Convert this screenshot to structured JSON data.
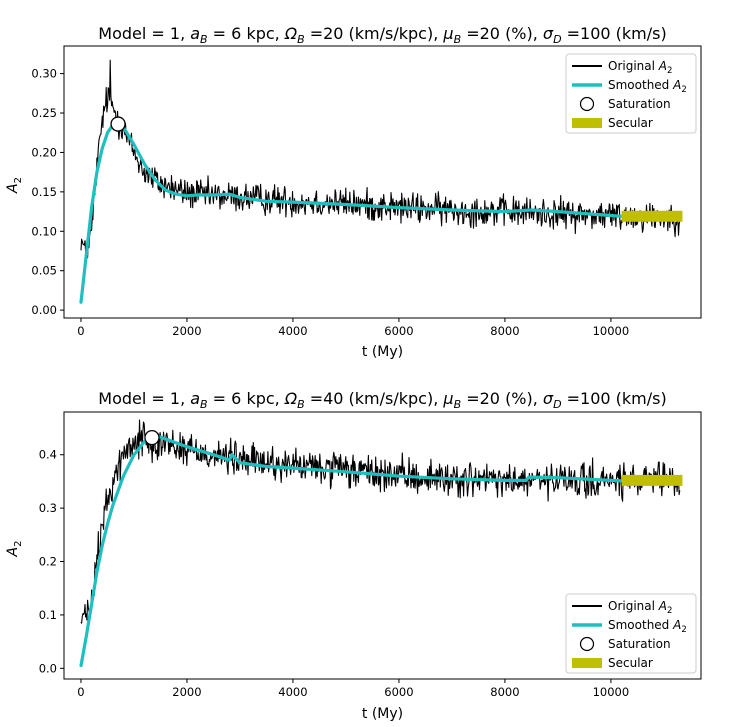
{
  "chart_data": [
    {
      "type": "line",
      "title_parts": [
        "Model = 1,  ",
        "a",
        "B",
        " = 6 kpc,  ",
        "Ω",
        "B",
        " =20 (km/s/kpc),  ",
        "μ",
        "B",
        " =20 (%),  ",
        "σ",
        "D",
        " =100 (km/s)"
      ],
      "xlabel": "t (My)",
      "ylabel_main": "A",
      "ylabel_sub": "2",
      "xlim": [
        -320,
        11700
      ],
      "ylim": [
        -0.01,
        0.335
      ],
      "xticks": [
        0,
        2000,
        4000,
        6000,
        8000,
        10000
      ],
      "xtick_labels": [
        "0",
        "2000",
        "4000",
        "6000",
        "8000",
        "10000"
      ],
      "yticks": [
        0.0,
        0.05,
        0.1,
        0.15,
        0.2,
        0.25,
        0.3
      ],
      "ytick_labels": [
        "0.00",
        "0.05",
        "0.10",
        "0.15",
        "0.20",
        "0.25",
        "0.30"
      ],
      "legend_loc": "top-right",
      "legend": [
        {
          "key": "original",
          "main": "Original ",
          "sub_main": "A",
          "sub": "2"
        },
        {
          "key": "smoothed",
          "main": "Smoothed ",
          "sub_main": "A",
          "sub": "2"
        },
        {
          "key": "saturation",
          "main": "Saturation",
          "sub_main": "",
          "sub": ""
        },
        {
          "key": "secular",
          "main": "Secular",
          "sub_main": "",
          "sub": ""
        }
      ],
      "original_anchors": [
        [
          0,
          0.09
        ],
        [
          100,
          0.07
        ],
        [
          200,
          0.1
        ],
        [
          300,
          0.18
        ],
        [
          400,
          0.24
        ],
        [
          500,
          0.27
        ],
        [
          600,
          0.26
        ],
        [
          700,
          0.24
        ],
        [
          800,
          0.23
        ],
        [
          1000,
          0.2
        ],
        [
          1200,
          0.175
        ],
        [
          1500,
          0.16
        ],
        [
          2000,
          0.148
        ],
        [
          2500,
          0.145
        ],
        [
          3000,
          0.143
        ],
        [
          4000,
          0.138
        ],
        [
          5000,
          0.135
        ],
        [
          6000,
          0.13
        ],
        [
          7000,
          0.127
        ],
        [
          8000,
          0.125
        ],
        [
          9000,
          0.122
        ],
        [
          10000,
          0.12
        ],
        [
          11300,
          0.118
        ]
      ],
      "original_noise": 0.012,
      "original_peak": [
        550,
        0.317
      ],
      "smoothed": [
        [
          0,
          0.01
        ],
        [
          100,
          0.07
        ],
        [
          200,
          0.13
        ],
        [
          300,
          0.175
        ],
        [
          400,
          0.205
        ],
        [
          500,
          0.225
        ],
        [
          600,
          0.235
        ],
        [
          700,
          0.236
        ],
        [
          800,
          0.232
        ],
        [
          1000,
          0.21
        ],
        [
          1200,
          0.185
        ],
        [
          1400,
          0.165
        ],
        [
          1600,
          0.152
        ],
        [
          1800,
          0.147
        ],
        [
          2000,
          0.145
        ],
        [
          2200,
          0.146
        ],
        [
          2500,
          0.146
        ],
        [
          2800,
          0.147
        ],
        [
          3000,
          0.143
        ],
        [
          3500,
          0.138
        ],
        [
          4000,
          0.137
        ],
        [
          5000,
          0.134
        ],
        [
          6000,
          0.13
        ],
        [
          7000,
          0.127
        ],
        [
          8000,
          0.125
        ],
        [
          8500,
          0.127
        ],
        [
          9000,
          0.125
        ],
        [
          10000,
          0.12
        ],
        [
          10200,
          0.119
        ]
      ],
      "saturation": [
        700,
        0.236
      ],
      "secular": {
        "x_start": 10200,
        "x_end": 11350,
        "y": 0.119
      }
    },
    {
      "type": "line",
      "title_parts": [
        "Model = 1,  ",
        "a",
        "B",
        " = 6 kpc,  ",
        "Ω",
        "B",
        " =40 (km/s/kpc),  ",
        "μ",
        "B",
        " =20 (%),  ",
        "σ",
        "D",
        " =100 (km/s)"
      ],
      "xlabel": "t (My)",
      "ylabel_main": "A",
      "ylabel_sub": "2",
      "xlim": [
        -320,
        11700
      ],
      "ylim": [
        -0.02,
        0.48
      ],
      "xticks": [
        0,
        2000,
        4000,
        6000,
        8000,
        10000
      ],
      "xtick_labels": [
        "0",
        "2000",
        "4000",
        "6000",
        "8000",
        "10000"
      ],
      "yticks": [
        0.0,
        0.1,
        0.2,
        0.3,
        0.4
      ],
      "ytick_labels": [
        "0.0",
        "0.1",
        "0.2",
        "0.3",
        "0.4"
      ],
      "legend_loc": "bottom-right",
      "legend": [
        {
          "key": "original",
          "main": "Original ",
          "sub_main": "A",
          "sub": "2"
        },
        {
          "key": "smoothed",
          "main": "Smoothed ",
          "sub_main": "A",
          "sub": "2"
        },
        {
          "key": "saturation",
          "main": "Saturation",
          "sub_main": "",
          "sub": ""
        },
        {
          "key": "secular",
          "main": "Secular",
          "sub_main": "",
          "sub": ""
        }
      ],
      "original_anchors": [
        [
          0,
          0.09
        ],
        [
          100,
          0.1
        ],
        [
          200,
          0.12
        ],
        [
          300,
          0.2
        ],
        [
          400,
          0.27
        ],
        [
          600,
          0.35
        ],
        [
          800,
          0.4
        ],
        [
          1000,
          0.42
        ],
        [
          1200,
          0.43
        ],
        [
          1500,
          0.425
        ],
        [
          2000,
          0.41
        ],
        [
          2500,
          0.4
        ],
        [
          3000,
          0.39
        ],
        [
          4000,
          0.38
        ],
        [
          5000,
          0.37
        ],
        [
          6000,
          0.36
        ],
        [
          7000,
          0.355
        ],
        [
          8000,
          0.35
        ],
        [
          9000,
          0.35
        ],
        [
          10000,
          0.35
        ],
        [
          11300,
          0.35
        ]
      ],
      "original_noise": 0.02,
      "original_peak": [
        1100,
        0.465
      ],
      "smoothed": [
        [
          0,
          0.005
        ],
        [
          100,
          0.06
        ],
        [
          200,
          0.12
        ],
        [
          300,
          0.18
        ],
        [
          400,
          0.23
        ],
        [
          500,
          0.27
        ],
        [
          600,
          0.305
        ],
        [
          800,
          0.36
        ],
        [
          1000,
          0.4
        ],
        [
          1200,
          0.425
        ],
        [
          1340,
          0.432
        ],
        [
          1500,
          0.433
        ],
        [
          2000,
          0.415
        ],
        [
          2500,
          0.4
        ],
        [
          2800,
          0.39
        ],
        [
          2850,
          0.4
        ],
        [
          3000,
          0.385
        ],
        [
          3500,
          0.378
        ],
        [
          4000,
          0.375
        ],
        [
          5000,
          0.368
        ],
        [
          6000,
          0.36
        ],
        [
          7000,
          0.355
        ],
        [
          8000,
          0.352
        ],
        [
          8400,
          0.352
        ],
        [
          8450,
          0.358
        ],
        [
          9000,
          0.357
        ],
        [
          10000,
          0.352
        ],
        [
          10200,
          0.351
        ]
      ],
      "saturation": [
        1340,
        0.432
      ],
      "secular": {
        "x_start": 10200,
        "x_end": 11350,
        "y": 0.352
      }
    }
  ]
}
